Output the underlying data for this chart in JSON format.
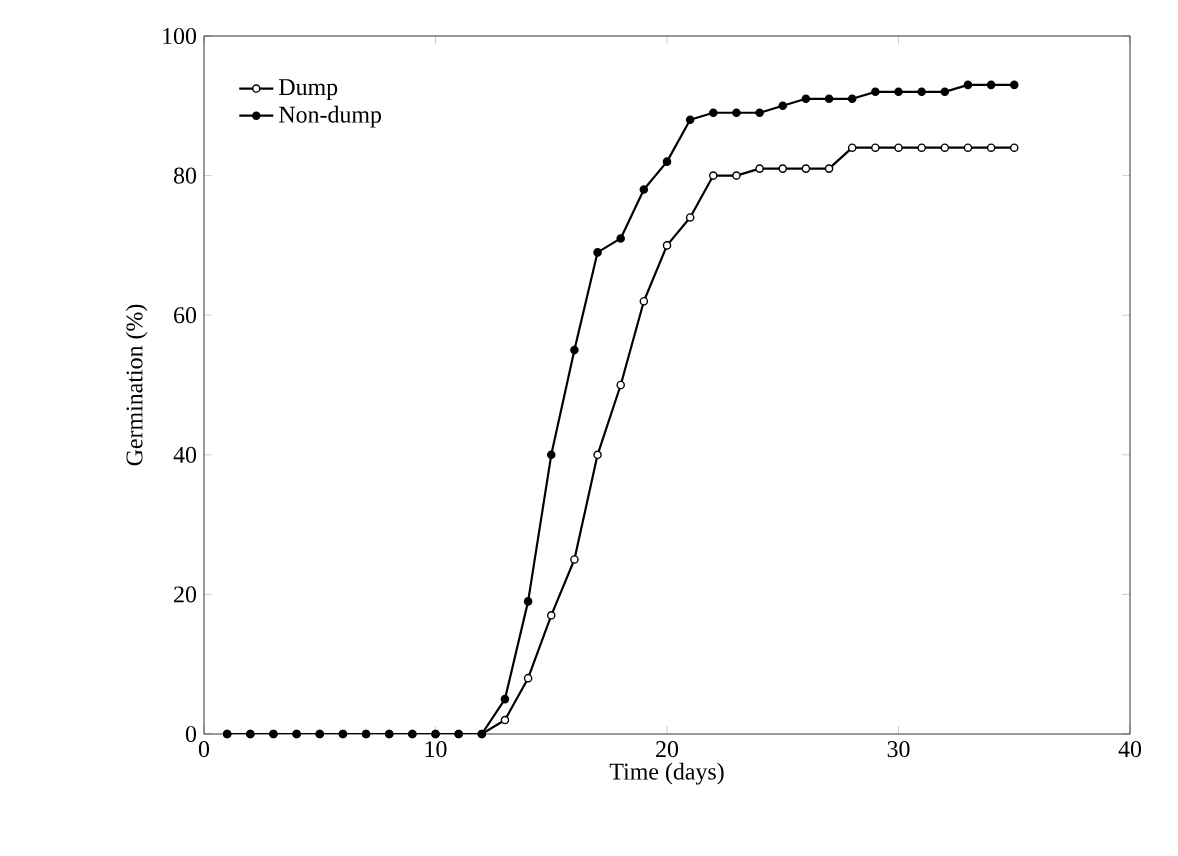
{
  "chart_data": {
    "type": "line",
    "xlabel": "Time (days)",
    "ylabel": "Germination (%)",
    "x": [
      1,
      2,
      3,
      4,
      5,
      6,
      7,
      8,
      9,
      10,
      11,
      12,
      13,
      14,
      15,
      16,
      17,
      18,
      19,
      20,
      21,
      22,
      23,
      24,
      25,
      26,
      27,
      28,
      29,
      30,
      31,
      32,
      33,
      34,
      35
    ],
    "series": [
      {
        "name": "Dump",
        "color": "#000000",
        "values": [
          0,
          0,
          0,
          0,
          0,
          0,
          0,
          0,
          0,
          0,
          0,
          0,
          2,
          8,
          17,
          25,
          40,
          50,
          62,
          70,
          74,
          80,
          80,
          81,
          81,
          81,
          81,
          84,
          84,
          84,
          84,
          84,
          84,
          84,
          84
        ]
      },
      {
        "name": "Non-dump",
        "color": "#000000",
        "values": [
          0,
          0,
          0,
          0,
          0,
          0,
          0,
          0,
          0,
          0,
          0,
          0,
          5,
          19,
          40,
          55,
          69,
          71,
          78,
          82,
          88,
          89,
          89,
          89,
          90,
          91,
          91,
          91,
          92,
          92,
          92,
          92,
          93,
          93,
          93
        ]
      }
    ],
    "xlim": [
      0,
      40
    ],
    "ylim": [
      0,
      100
    ],
    "xticks": [
      0,
      10,
      20,
      30,
      40
    ],
    "yticks": [
      0,
      20,
      40,
      60,
      80,
      100
    ],
    "grid": false,
    "legend": "top left",
    "marker": "circle",
    "line_style": "solid"
  }
}
